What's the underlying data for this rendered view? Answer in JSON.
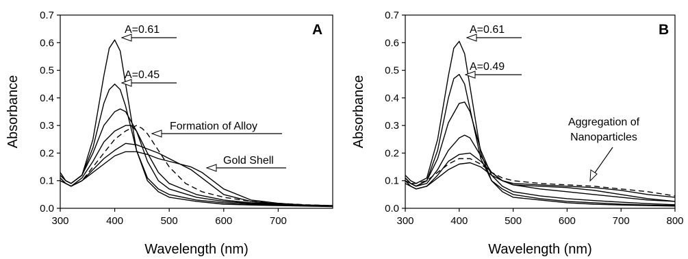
{
  "chart_data": [
    {
      "type": "line",
      "panel_label": "A",
      "xlabel": "Wavelength (nm)",
      "ylabel": "Absorbance",
      "xlim": [
        300,
        800
      ],
      "ylim": [
        0.0,
        0.7
      ],
      "x_ticks": [
        "300",
        "400",
        "500",
        "600",
        "700"
      ],
      "y_ticks": [
        "0.0",
        "0.1",
        "0.2",
        "0.3",
        "0.4",
        "0.5",
        "0.6",
        "0.7"
      ],
      "grid": false,
      "legend": "none",
      "series": [
        {
          "style": "solid",
          "x": [
            300,
            310,
            320,
            340,
            360,
            380,
            390,
            400,
            410,
            420,
            440,
            460,
            480,
            500,
            550,
            600,
            650,
            700,
            750,
            800
          ],
          "y": [
            0.13,
            0.1,
            0.09,
            0.12,
            0.25,
            0.48,
            0.58,
            0.61,
            0.57,
            0.45,
            0.21,
            0.1,
            0.06,
            0.04,
            0.025,
            0.015,
            0.012,
            0.01,
            0.008,
            0.006
          ]
        },
        {
          "style": "solid",
          "x": [
            300,
            310,
            320,
            340,
            360,
            380,
            390,
            400,
            410,
            420,
            440,
            460,
            480,
            500,
            550,
            600,
            650,
            700,
            750,
            800
          ],
          "y": [
            0.12,
            0.1,
            0.09,
            0.12,
            0.22,
            0.38,
            0.43,
            0.45,
            0.43,
            0.37,
            0.21,
            0.11,
            0.07,
            0.05,
            0.03,
            0.02,
            0.015,
            0.012,
            0.009,
            0.007
          ]
        },
        {
          "style": "solid",
          "x": [
            300,
            310,
            320,
            340,
            360,
            380,
            400,
            410,
            420,
            440,
            460,
            480,
            500,
            550,
            600,
            650,
            700,
            750,
            800
          ],
          "y": [
            0.12,
            0.1,
            0.09,
            0.12,
            0.2,
            0.3,
            0.35,
            0.36,
            0.35,
            0.28,
            0.17,
            0.1,
            0.07,
            0.04,
            0.025,
            0.018,
            0.013,
            0.01,
            0.008
          ]
        },
        {
          "style": "solid",
          "x": [
            300,
            310,
            320,
            340,
            360,
            380,
            400,
            420,
            430,
            440,
            460,
            480,
            500,
            550,
            600,
            650,
            700,
            750,
            800
          ],
          "y": [
            0.11,
            0.09,
            0.08,
            0.11,
            0.17,
            0.24,
            0.28,
            0.3,
            0.3,
            0.28,
            0.2,
            0.13,
            0.09,
            0.05,
            0.03,
            0.02,
            0.015,
            0.012,
            0.01
          ]
        },
        {
          "style": "dashed",
          "x": [
            300,
            310,
            320,
            340,
            360,
            380,
            400,
            420,
            440,
            450,
            460,
            480,
            500,
            530,
            560,
            600,
            650,
            700,
            750,
            800
          ],
          "y": [
            0.1,
            0.09,
            0.08,
            0.1,
            0.15,
            0.2,
            0.25,
            0.28,
            0.3,
            0.29,
            0.27,
            0.21,
            0.15,
            0.09,
            0.06,
            0.04,
            0.025,
            0.018,
            0.013,
            0.01
          ]
        },
        {
          "style": "solid",
          "x": [
            300,
            310,
            320,
            340,
            360,
            380,
            400,
            420,
            440,
            460,
            480,
            500,
            520,
            540,
            560,
            580,
            600,
            650,
            700,
            750,
            800
          ],
          "y": [
            0.11,
            0.09,
            0.08,
            0.1,
            0.14,
            0.18,
            0.21,
            0.235,
            0.23,
            0.215,
            0.2,
            0.18,
            0.16,
            0.14,
            0.11,
            0.08,
            0.05,
            0.025,
            0.015,
            0.01,
            0.008
          ]
        },
        {
          "style": "solid",
          "x": [
            300,
            310,
            320,
            340,
            360,
            380,
            400,
            420,
            440,
            460,
            480,
            500,
            520,
            540,
            560,
            580,
            600,
            650,
            700,
            750,
            800
          ],
          "y": [
            0.1,
            0.09,
            0.08,
            0.1,
            0.13,
            0.16,
            0.19,
            0.205,
            0.205,
            0.195,
            0.18,
            0.17,
            0.16,
            0.15,
            0.13,
            0.1,
            0.07,
            0.03,
            0.018,
            0.012,
            0.008
          ]
        }
      ],
      "annotations": [
        {
          "text": "A=0.61",
          "x": 405,
          "y": 0.61
        },
        {
          "text": "A=0.45",
          "x": 405,
          "y": 0.45
        },
        {
          "text": "Formation of Alloy",
          "x": 450,
          "y": 0.29
        },
        {
          "text": "Gold Shell",
          "x": 555,
          "y": 0.15
        }
      ]
    },
    {
      "type": "line",
      "panel_label": "B",
      "xlabel": "Wavelength (nm)",
      "ylabel": "Absorbance",
      "xlim": [
        300,
        800
      ],
      "ylim": [
        0.0,
        0.7
      ],
      "x_ticks": [
        "300",
        "400",
        "500",
        "600",
        "700",
        "800"
      ],
      "y_ticks": [
        "0.0",
        "0.1",
        "0.2",
        "0.3",
        "0.4",
        "0.5",
        "0.6",
        "0.7"
      ],
      "grid": false,
      "legend": "none",
      "series": [
        {
          "style": "solid",
          "x": [
            300,
            310,
            320,
            340,
            360,
            380,
            390,
            400,
            410,
            420,
            440,
            460,
            480,
            500,
            550,
            600,
            650,
            700,
            750,
            800
          ],
          "y": [
            0.12,
            0.1,
            0.09,
            0.11,
            0.25,
            0.48,
            0.58,
            0.605,
            0.56,
            0.44,
            0.2,
            0.1,
            0.06,
            0.04,
            0.03,
            0.02,
            0.015,
            0.012,
            0.01,
            0.008
          ]
        },
        {
          "style": "solid",
          "x": [
            300,
            310,
            320,
            340,
            360,
            380,
            390,
            400,
            410,
            420,
            440,
            460,
            480,
            500,
            550,
            600,
            650,
            700,
            750,
            800
          ],
          "y": [
            0.11,
            0.09,
            0.08,
            0.1,
            0.21,
            0.4,
            0.47,
            0.485,
            0.45,
            0.36,
            0.18,
            0.1,
            0.07,
            0.05,
            0.035,
            0.025,
            0.02,
            0.015,
            0.012,
            0.01
          ]
        },
        {
          "style": "solid",
          "x": [
            300,
            310,
            320,
            340,
            360,
            380,
            400,
            410,
            420,
            440,
            460,
            480,
            500,
            550,
            600,
            650,
            700,
            750,
            800
          ],
          "y": [
            0.11,
            0.09,
            0.08,
            0.1,
            0.18,
            0.31,
            0.38,
            0.385,
            0.35,
            0.21,
            0.12,
            0.08,
            0.06,
            0.045,
            0.035,
            0.028,
            0.022,
            0.017,
            0.013
          ]
        },
        {
          "style": "solid",
          "x": [
            300,
            310,
            320,
            340,
            360,
            380,
            400,
            410,
            420,
            440,
            460,
            480,
            500,
            550,
            600,
            650,
            700,
            750,
            800
          ],
          "y": [
            0.1,
            0.09,
            0.08,
            0.09,
            0.14,
            0.21,
            0.255,
            0.265,
            0.255,
            0.19,
            0.13,
            0.1,
            0.085,
            0.08,
            0.075,
            0.065,
            0.05,
            0.035,
            0.025
          ]
        },
        {
          "style": "solid",
          "x": [
            300,
            310,
            320,
            340,
            360,
            380,
            400,
            420,
            440,
            460,
            480,
            500,
            550,
            600,
            650,
            700,
            750,
            800
          ],
          "y": [
            0.1,
            0.08,
            0.07,
            0.08,
            0.12,
            0.17,
            0.195,
            0.2,
            0.17,
            0.13,
            0.1,
            0.09,
            0.085,
            0.08,
            0.075,
            0.065,
            0.05,
            0.04
          ]
        },
        {
          "style": "dashed",
          "x": [
            300,
            310,
            320,
            340,
            360,
            380,
            400,
            420,
            440,
            460,
            480,
            500,
            550,
            600,
            650,
            700,
            750,
            800
          ],
          "y": [
            0.11,
            0.09,
            0.09,
            0.1,
            0.13,
            0.16,
            0.18,
            0.18,
            0.16,
            0.13,
            0.11,
            0.1,
            0.09,
            0.085,
            0.08,
            0.07,
            0.06,
            0.045
          ]
        },
        {
          "style": "solid",
          "x": [
            300,
            310,
            320,
            340,
            360,
            380,
            400,
            420,
            440,
            460,
            480,
            500,
            550,
            600,
            650,
            700,
            750,
            800
          ],
          "y": [
            0.09,
            0.08,
            0.07,
            0.08,
            0.11,
            0.14,
            0.16,
            0.165,
            0.15,
            0.12,
            0.1,
            0.085,
            0.07,
            0.06,
            0.05,
            0.04,
            0.03,
            0.025
          ]
        }
      ],
      "annotations": [
        {
          "text": "A=0.61",
          "x": 405,
          "y": 0.605
        },
        {
          "text": "A=0.49",
          "x": 402,
          "y": 0.485
        },
        {
          "text": "Aggregation of",
          "x": 660,
          "y": 0.22
        },
        {
          "text": "Nanoparticles",
          "x": 660,
          "y": 0.16
        }
      ]
    }
  ]
}
